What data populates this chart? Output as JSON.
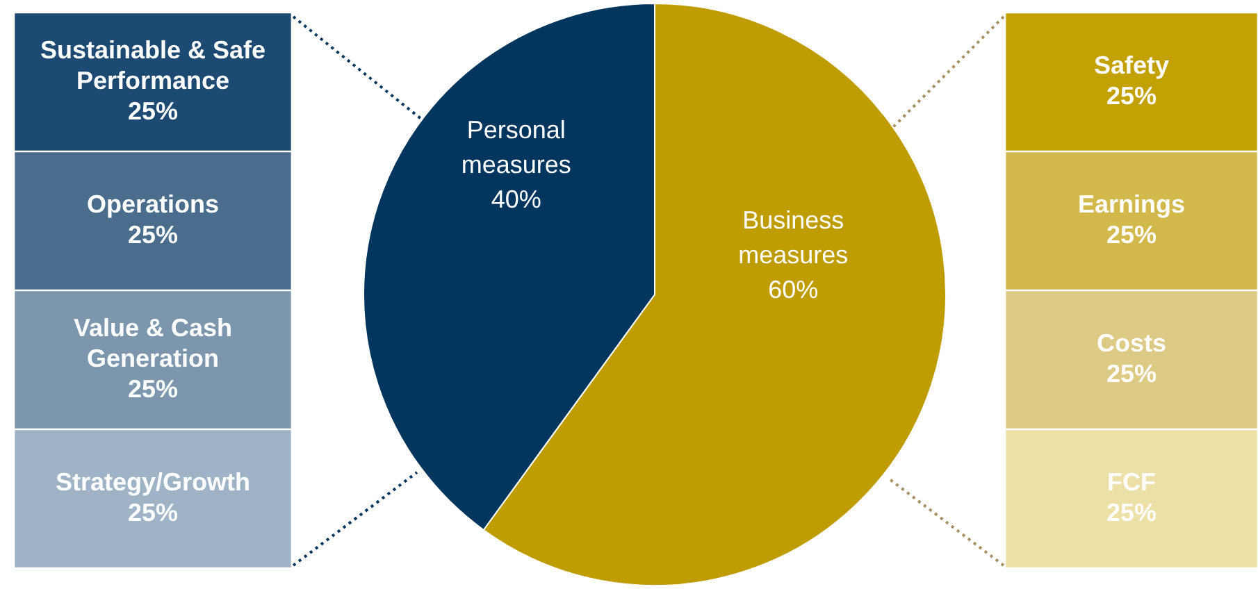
{
  "chart_data": [
    {
      "type": "other",
      "categories": [
        "Sustainable & Safe Performance",
        "Operations",
        "Value & Cash Generation",
        "Strategy/Growth"
      ],
      "values": [
        25,
        25,
        25,
        25
      ],
      "value_labels": [
        "25%",
        "25%",
        "25%",
        "25%"
      ],
      "colors": [
        "#1d4a72",
        "#4a6d8d",
        "#7b96ad",
        "#9fb3c6"
      ]
    },
    {
      "type": "pie",
      "categories": [
        "Business measures",
        "Personal measures"
      ],
      "values": [
        60,
        40
      ],
      "colors": [
        "#bf9c00",
        "#03365e"
      ],
      "value_labels": [
        "60%",
        "40%"
      ]
    },
    {
      "type": "other",
      "categories": [
        "Safety",
        "Earnings",
        "Costs",
        "FCF"
      ],
      "values": [
        25,
        25,
        25,
        25
      ],
      "value_labels": [
        "25%",
        "25%",
        "25%",
        "25%"
      ],
      "colors": [
        "#c3a100",
        "#d3b84b",
        "#ddca84",
        "#ede0a6"
      ]
    }
  ]
}
